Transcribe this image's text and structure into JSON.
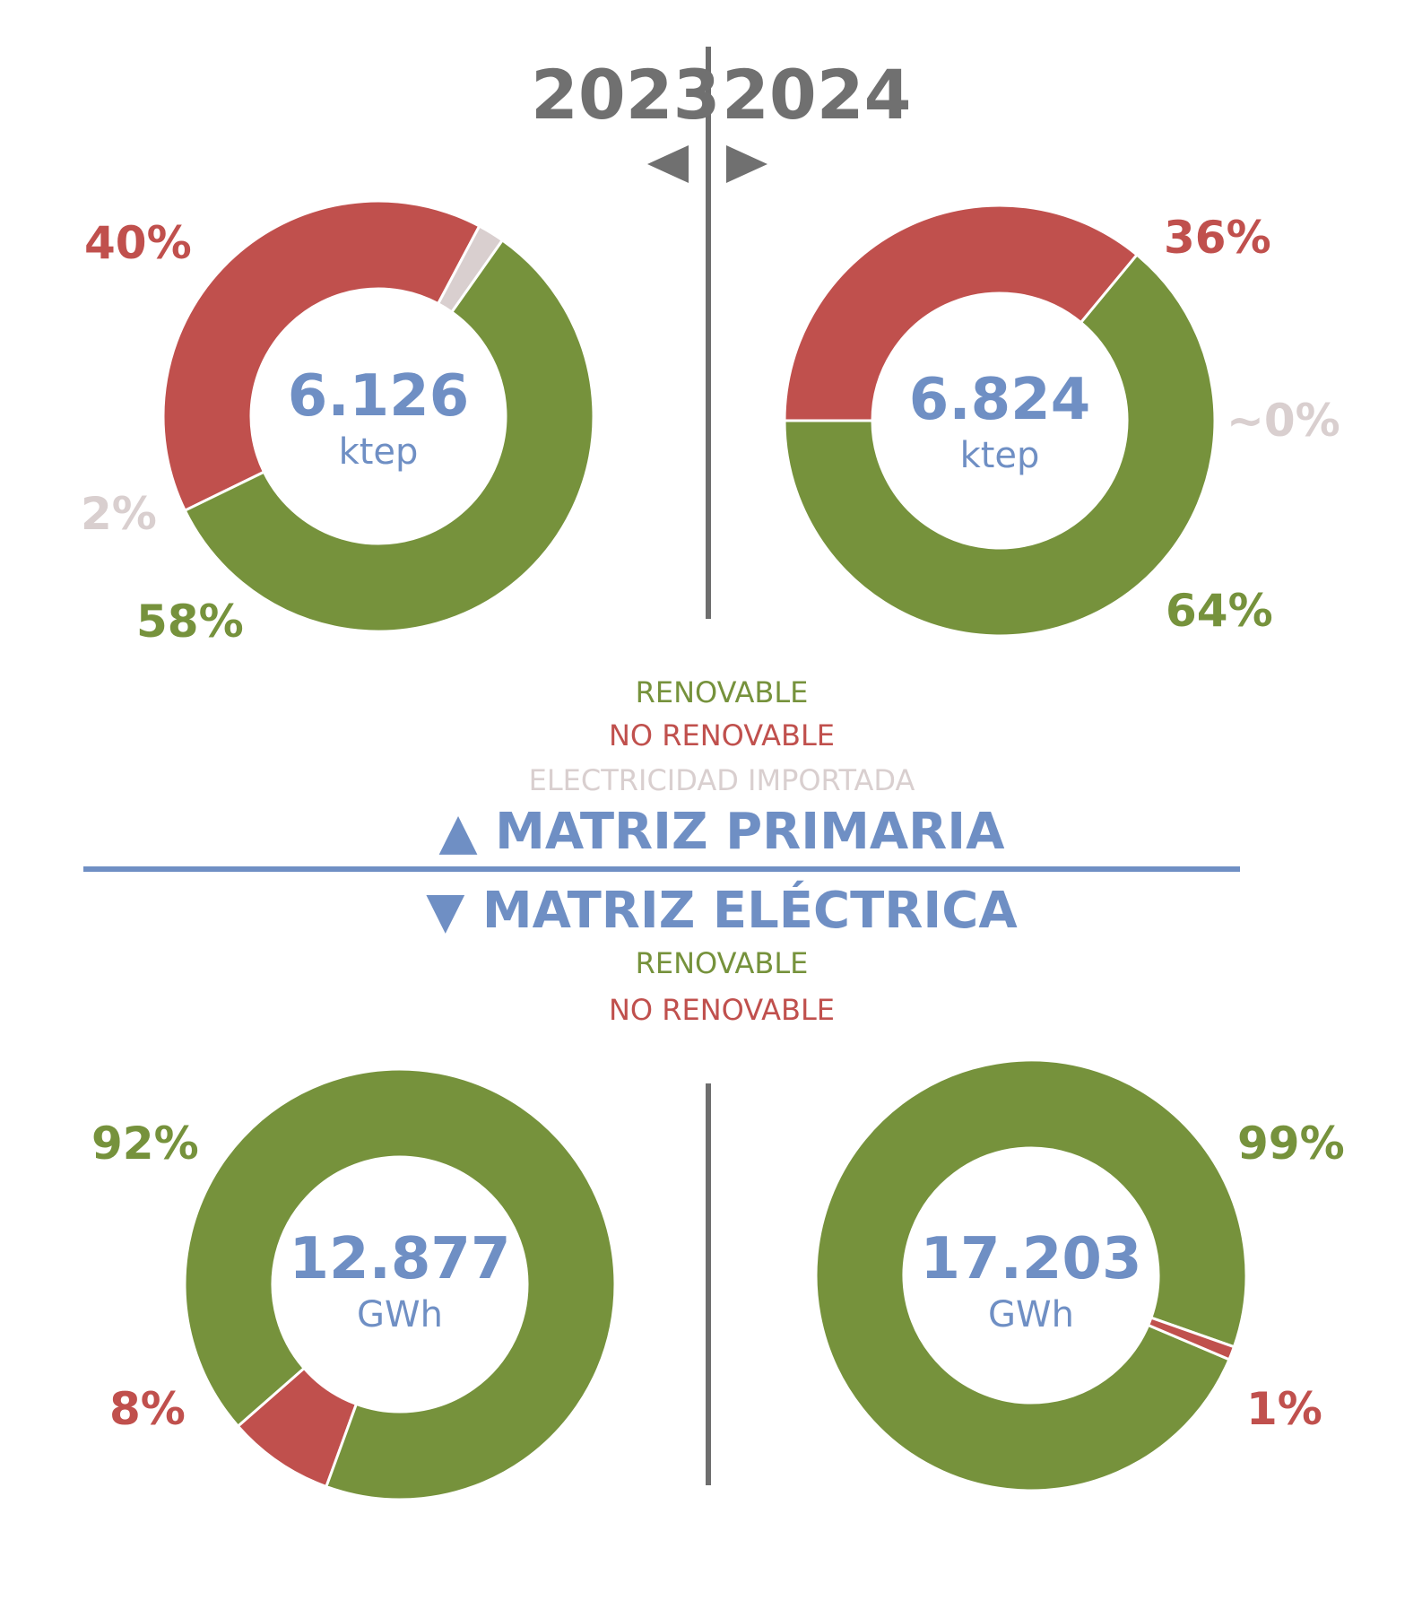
{
  "years": {
    "left": "2023",
    "right": "2024"
  },
  "colors": {
    "renovable": "#76923C",
    "no_renovable": "#C0504D",
    "importada": "#D9CFCF",
    "accent": "#6F8FC4",
    "year_gray": "#707070",
    "divider": "#6E6E6E"
  },
  "primary_legend": {
    "renovable": "RENOVABLE",
    "no_renovable": "NO RENOVABLE",
    "importada": "ELECTRICIDAD IMPORTADA"
  },
  "primary_title": "▲ MATRIZ PRIMARIA",
  "electric_title": "▼ MATRIZ ELÉCTRICA",
  "electric_legend": {
    "renovable": "RENOVABLE",
    "no_renovable": "NO RENOVABLE"
  },
  "chart_data": [
    {
      "type": "pie",
      "id": "primaria_2023",
      "total": "6.126",
      "unit": "ktep",
      "categories": [
        "RENOVABLE",
        "NO RENOVABLE",
        "ELECTRICIDAD IMPORTADA"
      ],
      "values": [
        58,
        40,
        2
      ],
      "labels": [
        "58%",
        "40%",
        "2%"
      ]
    },
    {
      "type": "pie",
      "id": "primaria_2024",
      "total": "6.824",
      "unit": "ktep",
      "categories": [
        "RENOVABLE",
        "NO RENOVABLE",
        "ELECTRICIDAD IMPORTADA"
      ],
      "values": [
        64,
        36,
        0
      ],
      "labels": [
        "64%",
        "36%",
        "~0%"
      ]
    },
    {
      "type": "pie",
      "id": "electrica_2023",
      "total": "12.877",
      "unit": "GWh",
      "categories": [
        "RENOVABLE",
        "NO RENOVABLE"
      ],
      "values": [
        92,
        8
      ],
      "labels": [
        "92%",
        "8%"
      ]
    },
    {
      "type": "pie",
      "id": "electrica_2024",
      "total": "17.203",
      "unit": "GWh",
      "categories": [
        "RENOVABLE",
        "NO RENOVABLE"
      ],
      "values": [
        99,
        1
      ],
      "labels": [
        "99%",
        "1%"
      ]
    }
  ]
}
